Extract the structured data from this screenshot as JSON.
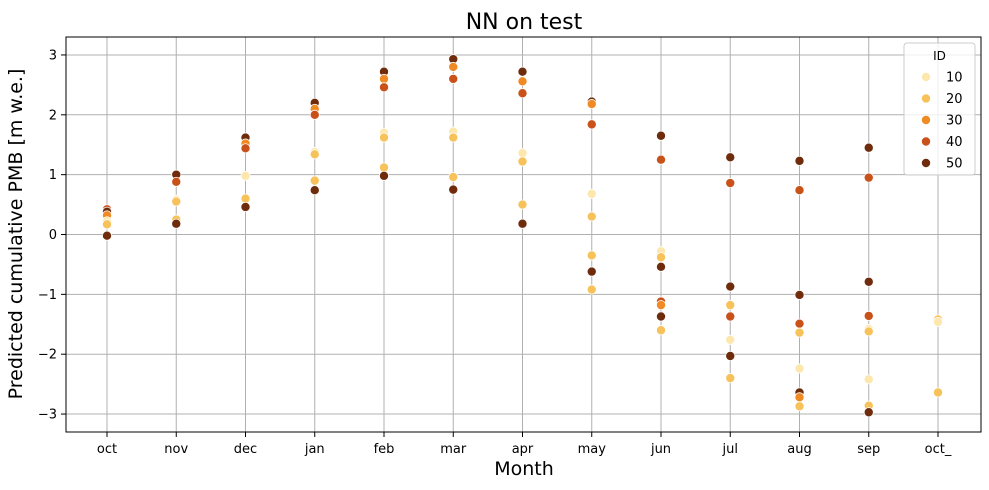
{
  "chart_data": {
    "type": "scatter",
    "title": "NN on test",
    "xlabel": "Month",
    "ylabel": "Predicted cumulative PMB [m w.e.]",
    "categories": [
      "oct",
      "nov",
      "dec",
      "jan",
      "feb",
      "mar",
      "apr",
      "may",
      "jun",
      "jul",
      "aug",
      "sep",
      "oct_"
    ],
    "ylim": [
      -3.3,
      3.3
    ],
    "yticks": [
      -3,
      -2,
      -1,
      0,
      1,
      2,
      3
    ],
    "grid": true,
    "legend": {
      "title": "ID",
      "placement": "top-right",
      "entries": [
        {
          "label": "10",
          "color": "#fde7ad"
        },
        {
          "label": "20",
          "color": "#f8c25a"
        },
        {
          "label": "30",
          "color": "#f08a24"
        },
        {
          "label": "40",
          "color": "#c9511a"
        },
        {
          "label": "50",
          "color": "#6e2c0c"
        }
      ]
    },
    "series": [
      {
        "x": "oct",
        "y": 0.42,
        "color": "#c9511a"
      },
      {
        "x": "oct",
        "y": 0.38,
        "color": "#6e2c0c"
      },
      {
        "x": "oct",
        "y": 0.32,
        "color": "#f08a24"
      },
      {
        "x": "oct",
        "y": 0.22,
        "color": "#fde7ad"
      },
      {
        "x": "oct",
        "y": 0.17,
        "color": "#f8c25a"
      },
      {
        "x": "oct",
        "y": -0.02,
        "color": "#6e2c0c"
      },
      {
        "x": "nov",
        "y": 1.0,
        "color": "#6e2c0c"
      },
      {
        "x": "nov",
        "y": 0.88,
        "color": "#c9511a"
      },
      {
        "x": "nov",
        "y": 0.58,
        "color": "#fde7ad"
      },
      {
        "x": "nov",
        "y": 0.55,
        "color": "#f8c25a"
      },
      {
        "x": "nov",
        "y": 0.25,
        "color": "#f8c25a"
      },
      {
        "x": "nov",
        "y": 0.18,
        "color": "#6e2c0c"
      },
      {
        "x": "dec",
        "y": 1.62,
        "color": "#6e2c0c"
      },
      {
        "x": "dec",
        "y": 1.52,
        "color": "#f08a24"
      },
      {
        "x": "dec",
        "y": 1.44,
        "color": "#c9511a"
      },
      {
        "x": "dec",
        "y": 0.98,
        "color": "#fde7ad"
      },
      {
        "x": "dec",
        "y": 0.6,
        "color": "#f8c25a"
      },
      {
        "x": "dec",
        "y": 0.46,
        "color": "#6e2c0c"
      },
      {
        "x": "jan",
        "y": 2.2,
        "color": "#6e2c0c"
      },
      {
        "x": "jan",
        "y": 2.1,
        "color": "#f08a24"
      },
      {
        "x": "jan",
        "y": 2.0,
        "color": "#c9511a"
      },
      {
        "x": "jan",
        "y": 1.38,
        "color": "#fde7ad"
      },
      {
        "x": "jan",
        "y": 1.34,
        "color": "#f8c25a"
      },
      {
        "x": "jan",
        "y": 0.9,
        "color": "#f8c25a"
      },
      {
        "x": "jan",
        "y": 0.74,
        "color": "#6e2c0c"
      },
      {
        "x": "feb",
        "y": 2.72,
        "color": "#6e2c0c"
      },
      {
        "x": "feb",
        "y": 2.6,
        "color": "#f08a24"
      },
      {
        "x": "feb",
        "y": 2.46,
        "color": "#c9511a"
      },
      {
        "x": "feb",
        "y": 1.7,
        "color": "#fde7ad"
      },
      {
        "x": "feb",
        "y": 1.62,
        "color": "#f8c25a"
      },
      {
        "x": "feb",
        "y": 1.12,
        "color": "#f8c25a"
      },
      {
        "x": "feb",
        "y": 0.98,
        "color": "#6e2c0c"
      },
      {
        "x": "mar",
        "y": 2.93,
        "color": "#6e2c0c"
      },
      {
        "x": "mar",
        "y": 2.8,
        "color": "#f08a24"
      },
      {
        "x": "mar",
        "y": 2.6,
        "color": "#c9511a"
      },
      {
        "x": "mar",
        "y": 1.72,
        "color": "#fde7ad"
      },
      {
        "x": "mar",
        "y": 1.62,
        "color": "#f8c25a"
      },
      {
        "x": "mar",
        "y": 0.96,
        "color": "#f8c25a"
      },
      {
        "x": "mar",
        "y": 0.75,
        "color": "#6e2c0c"
      },
      {
        "x": "apr",
        "y": 2.72,
        "color": "#6e2c0c"
      },
      {
        "x": "apr",
        "y": 2.56,
        "color": "#f08a24"
      },
      {
        "x": "apr",
        "y": 2.36,
        "color": "#c9511a"
      },
      {
        "x": "apr",
        "y": 1.36,
        "color": "#fde7ad"
      },
      {
        "x": "apr",
        "y": 1.22,
        "color": "#f8c25a"
      },
      {
        "x": "apr",
        "y": 0.5,
        "color": "#f8c25a"
      },
      {
        "x": "apr",
        "y": 0.18,
        "color": "#6e2c0c"
      },
      {
        "x": "may",
        "y": 2.22,
        "color": "#6e2c0c"
      },
      {
        "x": "may",
        "y": 2.18,
        "color": "#f08a24"
      },
      {
        "x": "may",
        "y": 1.84,
        "color": "#c9511a"
      },
      {
        "x": "may",
        "y": 0.68,
        "color": "#fde7ad"
      },
      {
        "x": "may",
        "y": 0.3,
        "color": "#f8c25a"
      },
      {
        "x": "may",
        "y": -0.35,
        "color": "#f8c25a"
      },
      {
        "x": "may",
        "y": -0.62,
        "color": "#6e2c0c"
      },
      {
        "x": "may",
        "y": -0.92,
        "color": "#f8c25a"
      },
      {
        "x": "jun",
        "y": 1.65,
        "color": "#6e2c0c"
      },
      {
        "x": "jun",
        "y": 1.25,
        "color": "#c9511a"
      },
      {
        "x": "jun",
        "y": -0.28,
        "color": "#fde7ad"
      },
      {
        "x": "jun",
        "y": -0.38,
        "color": "#f8c25a"
      },
      {
        "x": "jun",
        "y": -0.54,
        "color": "#6e2c0c"
      },
      {
        "x": "jun",
        "y": -1.12,
        "color": "#c9511a"
      },
      {
        "x": "jun",
        "y": -1.18,
        "color": "#f08a24"
      },
      {
        "x": "jun",
        "y": -1.37,
        "color": "#6e2c0c"
      },
      {
        "x": "jun",
        "y": -1.6,
        "color": "#f8c25a"
      },
      {
        "x": "jul",
        "y": 1.29,
        "color": "#6e2c0c"
      },
      {
        "x": "jul",
        "y": 0.86,
        "color": "#c9511a"
      },
      {
        "x": "jul",
        "y": -0.87,
        "color": "#6e2c0c"
      },
      {
        "x": "jul",
        "y": -1.18,
        "color": "#f8c25a"
      },
      {
        "x": "jul",
        "y": -1.37,
        "color": "#c9511a"
      },
      {
        "x": "jul",
        "y": -1.76,
        "color": "#fde7ad"
      },
      {
        "x": "jul",
        "y": -2.03,
        "color": "#6e2c0c"
      },
      {
        "x": "jul",
        "y": -2.4,
        "color": "#f8c25a"
      },
      {
        "x": "aug",
        "y": 1.23,
        "color": "#6e2c0c"
      },
      {
        "x": "aug",
        "y": 0.74,
        "color": "#c9511a"
      },
      {
        "x": "aug",
        "y": -1.01,
        "color": "#6e2c0c"
      },
      {
        "x": "aug",
        "y": -1.49,
        "color": "#c9511a"
      },
      {
        "x": "aug",
        "y": -1.64,
        "color": "#f8c25a"
      },
      {
        "x": "aug",
        "y": -2.24,
        "color": "#fde7ad"
      },
      {
        "x": "aug",
        "y": -2.64,
        "color": "#6e2c0c"
      },
      {
        "x": "aug",
        "y": -2.72,
        "color": "#f08a24"
      },
      {
        "x": "aug",
        "y": -2.87,
        "color": "#f8c25a"
      },
      {
        "x": "sep",
        "y": 1.45,
        "color": "#6e2c0c"
      },
      {
        "x": "sep",
        "y": 0.95,
        "color": "#c9511a"
      },
      {
        "x": "sep",
        "y": -0.79,
        "color": "#6e2c0c"
      },
      {
        "x": "sep",
        "y": -1.36,
        "color": "#c9511a"
      },
      {
        "x": "sep",
        "y": -1.58,
        "color": "#fde7ad"
      },
      {
        "x": "sep",
        "y": -1.62,
        "color": "#f8c25a"
      },
      {
        "x": "sep",
        "y": -2.42,
        "color": "#fde7ad"
      },
      {
        "x": "sep",
        "y": -2.86,
        "color": "#f8c25a"
      },
      {
        "x": "sep",
        "y": -2.97,
        "color": "#6e2c0c"
      },
      {
        "x": "oct_",
        "y": -1.42,
        "color": "#f8c25a"
      },
      {
        "x": "oct_",
        "y": -1.46,
        "color": "#fde7ad"
      },
      {
        "x": "oct_",
        "y": -2.64,
        "color": "#f8c25a"
      }
    ]
  }
}
